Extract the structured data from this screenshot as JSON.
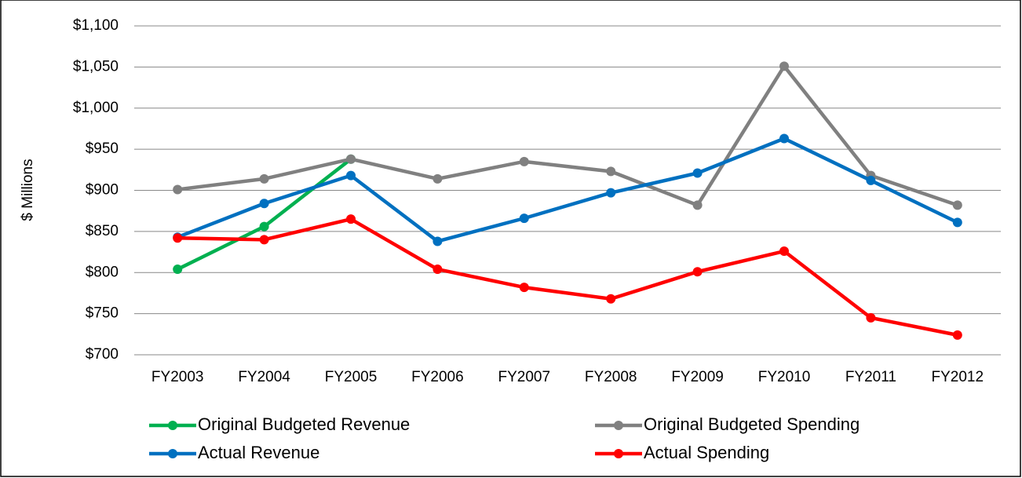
{
  "chart_data": {
    "type": "line",
    "y_label": "$ Millions",
    "categories": [
      "FY2003",
      "FY2004",
      "FY2005",
      "FY2006",
      "FY2007",
      "FY2008",
      "FY2009",
      "FY2010",
      "FY2011",
      "FY2012"
    ],
    "series": [
      {
        "name": "Original Budgeted Revenue",
        "color": "#00b050",
        "values": [
          804,
          856,
          938,
          null,
          null,
          null,
          null,
          null,
          null,
          null
        ]
      },
      {
        "name": "Original Budgeted Spending",
        "color": "#808080",
        "values": [
          901,
          914,
          938,
          914,
          935,
          923,
          882,
          1051,
          918,
          882
        ]
      },
      {
        "name": "Actual Revenue",
        "color": "#0070c0",
        "values": [
          843,
          884,
          918,
          838,
          866,
          897,
          921,
          963,
          912,
          861
        ]
      },
      {
        "name": "Actual Spending",
        "color": "#ff0000",
        "values": [
          842,
          840,
          865,
          804,
          782,
          768,
          801,
          826,
          745,
          724
        ]
      }
    ],
    "ylim": [
      700,
      1100
    ],
    "yticks": [
      {
        "value": 700,
        "label": "$700"
      },
      {
        "value": 750,
        "label": "$750"
      },
      {
        "value": 800,
        "label": "$800"
      },
      {
        "value": 850,
        "label": "$850"
      },
      {
        "value": 900,
        "label": "$900"
      },
      {
        "value": 950,
        "label": "$950"
      },
      {
        "value": 1000,
        "label": "$1,000"
      },
      {
        "value": 1050,
        "label": "$1,050"
      },
      {
        "value": 1100,
        "label": "$1,100"
      }
    ],
    "grid": true,
    "legend": "bottom"
  }
}
